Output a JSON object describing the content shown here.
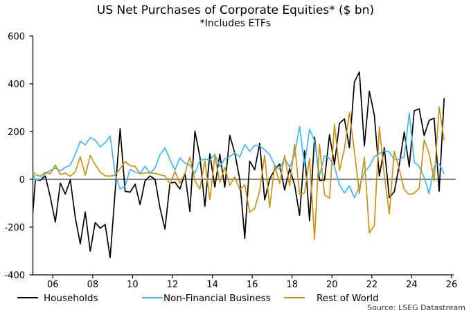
{
  "chart_data": {
    "type": "line",
    "title": "US Net Purchases of Corporate Equities* ($ bn)",
    "subtitle": "*Includes ETFs",
    "source": "Source: LSEG Datastream",
    "ylim": [
      -400,
      600
    ],
    "yticks": [
      600,
      400,
      200,
      0,
      -200,
      -400
    ],
    "xlim": [
      2005,
      2026.1
    ],
    "xticks": [
      2006,
      2008,
      2010,
      2012,
      2014,
      2016,
      2018,
      2020,
      2022,
      2024,
      2026
    ],
    "xtick_labels": [
      "06",
      "08",
      "10",
      "12",
      "14",
      "16",
      "18",
      "20",
      "22",
      "24",
      "26"
    ],
    "grid": false,
    "zero_line_color": "#808080",
    "legend_placement": "bottom",
    "x_start": "2004 Q4",
    "x_frequency": "quarterly",
    "series": [
      {
        "name": "Households",
        "color": "#000000",
        "values": [
          -268,
          -2,
          -4,
          14,
          -75,
          -179,
          -16,
          -62,
          -2,
          -160,
          -270,
          -137,
          -301,
          -181,
          -205,
          -189,
          -328,
          -50,
          212,
          -50,
          -54,
          -20,
          -106,
          -6,
          14,
          0,
          -120,
          -208,
          -16,
          -12,
          -41,
          25,
          -135,
          202,
          95,
          -113,
          107,
          -33,
          105,
          -33,
          184,
          110,
          0,
          -247,
          76,
          40,
          151,
          -86,
          1,
          40,
          64,
          -45,
          45,
          -23,
          -151,
          120,
          -174,
          176,
          -4,
          -4,
          187,
          62,
          234,
          253,
          132,
          408,
          449,
          140,
          369,
          268,
          14,
          132,
          -77,
          -52,
          60,
          198,
          52,
          287,
          295,
          183,
          247,
          256,
          -50,
          340
        ]
      },
      {
        "name": "Non-Financial Business",
        "color": "#3fb8f5",
        "values": [
          49,
          -3,
          0,
          25,
          37,
          47,
          35,
          50,
          59,
          105,
          159,
          144,
          175,
          164,
          136,
          153,
          182,
          20,
          -41,
          -29,
          42,
          30,
          25,
          54,
          25,
          47,
          103,
          132,
          83,
          39,
          89,
          68,
          59,
          25,
          78,
          85,
          81,
          105,
          54,
          86,
          95,
          111,
          93,
          145,
          117,
          142,
          140,
          124,
          103,
          59,
          42,
          88,
          50,
          103,
          221,
          59,
          210,
          161,
          16,
          98,
          88,
          54,
          -23,
          -57,
          -28,
          -77,
          -32,
          30,
          54,
          95,
          108,
          120,
          115,
          82,
          85,
          93,
          278,
          72,
          54,
          8,
          -60,
          54,
          64,
          23
        ]
      },
      {
        "name": "Rest of World",
        "color": "#cc9210",
        "values": [
          50,
          19,
          13,
          29,
          23,
          60,
          20,
          26,
          13,
          31,
          95,
          17,
          100,
          62,
          30,
          15,
          13,
          17,
          45,
          74,
          57,
          54,
          23,
          27,
          27,
          25,
          19,
          14,
          -19,
          33,
          -17,
          25,
          93,
          -6,
          -41,
          78,
          -85,
          100,
          -12,
          50,
          -25,
          10,
          -43,
          -23,
          -138,
          -122,
          -48,
          101,
          -118,
          59,
          -18,
          100,
          -28,
          147,
          -62,
          -57,
          88,
          -251,
          147,
          -64,
          -80,
          231,
          37,
          127,
          280,
          117,
          -60,
          92,
          -225,
          -193,
          221,
          16,
          -145,
          117,
          43,
          -43,
          -64,
          -58,
          -38,
          166,
          108,
          -6,
          302,
          163
        ]
      }
    ]
  }
}
